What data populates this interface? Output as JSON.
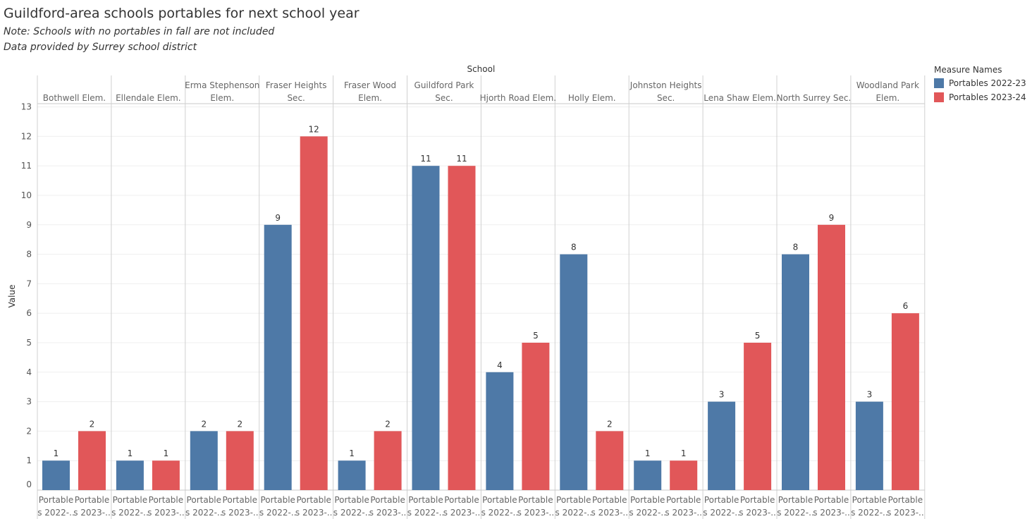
{
  "header": {
    "title": "Guildford-area schools portables for next school year",
    "note1": "Note: Schools with no portables in fall are not included",
    "note2": "Data provided by Surrey school district"
  },
  "legend": {
    "title": "Measure Names",
    "items": [
      {
        "label": "Portables 2022-23",
        "color": "#4e79a7"
      },
      {
        "label": "Portables 2023-24",
        "color": "#e15759"
      }
    ]
  },
  "chart_data": {
    "type": "bar",
    "column_header": "School",
    "ylabel": "Value",
    "ylim": [
      0,
      13
    ],
    "yticks": [
      0,
      1,
      2,
      3,
      4,
      5,
      6,
      7,
      8,
      9,
      10,
      11,
      12,
      13
    ],
    "categories": [
      [
        "Bothwell Elem."
      ],
      [
        "Ellendale Elem."
      ],
      [
        "Erma Stephenson",
        "Elem."
      ],
      [
        "Fraser Heights",
        "Sec."
      ],
      [
        "Fraser Wood",
        "Elem."
      ],
      [
        "Guildford Park",
        "Sec."
      ],
      [
        "Hjorth Road Elem."
      ],
      [
        "Holly Elem."
      ],
      [
        "Johnston Heights",
        "Sec."
      ],
      [
        "Lena Shaw Elem."
      ],
      [
        "North Surrey Sec."
      ],
      [
        "Woodland Park",
        "Elem."
      ]
    ],
    "bar_axis_labels": [
      [
        "Portable",
        "s 2022-.."
      ],
      [
        "Portable",
        "s 2023-.."
      ]
    ],
    "series": [
      {
        "name": "Portables 2022-23",
        "color": "#4e79a7",
        "values": [
          1,
          1,
          2,
          9,
          1,
          11,
          4,
          8,
          1,
          3,
          8,
          3
        ]
      },
      {
        "name": "Portables 2023-24",
        "color": "#e15759",
        "values": [
          2,
          1,
          2,
          12,
          2,
          11,
          5,
          2,
          1,
          5,
          9,
          6
        ]
      }
    ]
  }
}
